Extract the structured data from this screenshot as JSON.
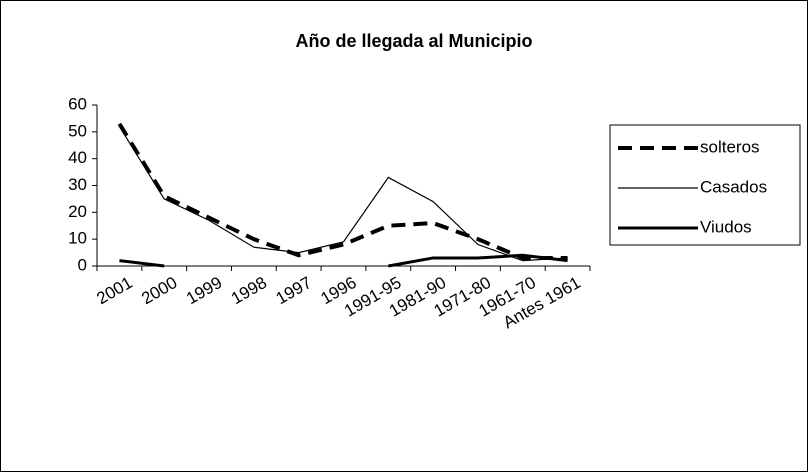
{
  "chart_data": {
    "type": "line",
    "title": "Año de llegada al Municipio",
    "categories": [
      "2001",
      "2000",
      "1999",
      "1998",
      "1997",
      "1996",
      "1991-95",
      "1981-90",
      "1971-80",
      "1961-70",
      "Antes 1961"
    ],
    "series": [
      {
        "name": "solteros",
        "color": "#000000",
        "width": 4,
        "dash": "14 8",
        "values": [
          53,
          26,
          18,
          10,
          4,
          8,
          15,
          16,
          10,
          3,
          3
        ]
      },
      {
        "name": "Casados",
        "color": "#000000",
        "width": 1.2,
        "dash": "none",
        "values": [
          52,
          25,
          17,
          7,
          5,
          9,
          33,
          24,
          8,
          2,
          3
        ]
      },
      {
        "name": "Viudos",
        "color": "#000000",
        "width": 3,
        "dash": "none",
        "values": [
          2,
          0,
          null,
          null,
          null,
          null,
          0,
          3,
          3,
          4,
          2
        ]
      }
    ],
    "ylim": [
      0,
      60
    ],
    "yticks": [
      0,
      10,
      20,
      30,
      40,
      50,
      60
    ],
    "legend": "right"
  }
}
